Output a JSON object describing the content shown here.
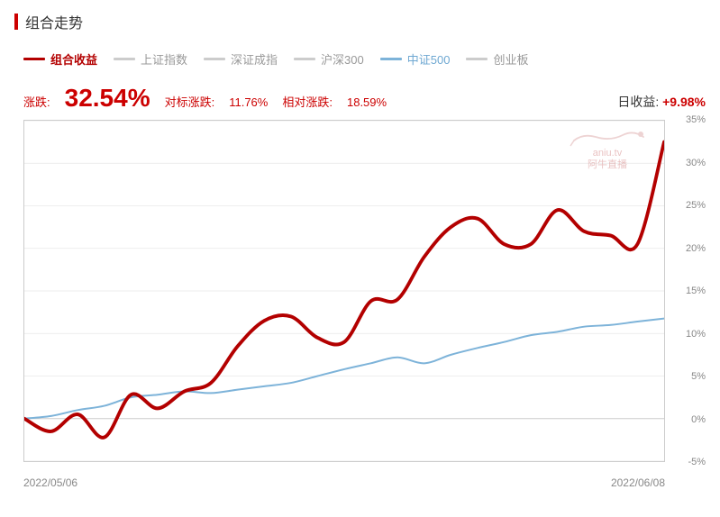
{
  "title": "组合走势",
  "legend": {
    "items": [
      {
        "label": "组合收益",
        "color": "#B30000",
        "active": true,
        "kind": "red"
      },
      {
        "label": "上证指数",
        "color": "#cccccc",
        "active": false
      },
      {
        "label": "深证成指",
        "color": "#cccccc",
        "active": false
      },
      {
        "label": "沪深300",
        "color": "#cccccc",
        "active": false
      },
      {
        "label": "中证500",
        "color": "#7db3d9",
        "active": true,
        "kind": "blue"
      },
      {
        "label": "创业板",
        "color": "#cccccc",
        "active": false
      }
    ]
  },
  "stats": {
    "change_label": "涨跌:",
    "change_value": "32.54%",
    "benchmark_label": "对标涨跌:",
    "benchmark_value": "11.76%",
    "relative_label": "相对涨跌:",
    "relative_value": "18.59%",
    "daily_label": "日收益:",
    "daily_value": "+9.98%"
  },
  "watermark": {
    "url": "aniu.tv",
    "name": "阿牛直播"
  },
  "chart": {
    "type": "line",
    "y_min": -5,
    "y_max": 35,
    "y_step": 5,
    "y_tick_labels": [
      "-5%",
      "0%",
      "5%",
      "10%",
      "15%",
      "20%",
      "25%",
      "30%",
      "35%"
    ],
    "x_start_label": "2022/05/06",
    "x_end_label": "2022/06/08",
    "x_count": 24,
    "grid_color": "#e8e8e8",
    "border_color": "#cccccc",
    "background_color": "#ffffff",
    "series_portfolio": {
      "color": "#B30000",
      "width": 4,
      "values": [
        0,
        -1.5,
        0.5,
        -2.2,
        2.8,
        1.2,
        3.2,
        4.2,
        8.5,
        11.5,
        12.0,
        9.5,
        9.0,
        13.8,
        14.0,
        19.0,
        22.5,
        23.5,
        20.5,
        20.5,
        24.5,
        22.0,
        21.5,
        20.5,
        32.5
      ]
    },
    "series_csi500": {
      "color": "#7db3d9",
      "width": 2,
      "values": [
        0,
        0.3,
        1.0,
        1.5,
        2.5,
        2.8,
        3.2,
        3.0,
        3.4,
        3.8,
        4.2,
        5.0,
        5.8,
        6.5,
        7.2,
        6.5,
        7.5,
        8.3,
        9.0,
        9.8,
        10.2,
        10.8,
        11.0,
        11.4,
        11.76
      ]
    }
  }
}
